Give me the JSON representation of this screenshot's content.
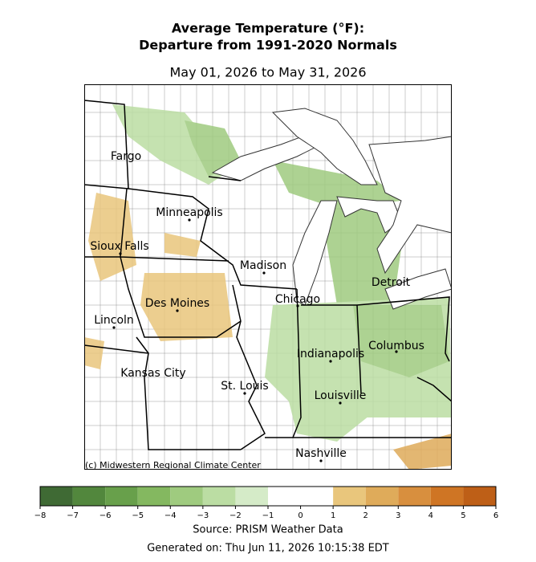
{
  "title": [
    "Average Temperature (°F):",
    "Departure from 1991-2020 Normals"
  ],
  "subtitle": "May 01, 2026 to May 31, 2026",
  "cities": [
    "Fargo",
    "Minneapolis",
    "Sioux Falls",
    "Madison",
    "Detroit",
    "Chicago",
    "Des Moines",
    "Lincoln",
    "Columbus",
    "Indianapolis",
    "Kansas City",
    "St. Louis",
    "Louisville",
    "Nashville"
  ],
  "credit": "(c) Midwestern Regional Climate Center",
  "colorbar": {
    "ticks": [
      {
        "value": -8,
        "label": "−8"
      },
      {
        "value": -7,
        "label": "−7"
      },
      {
        "value": -6,
        "label": "−6"
      },
      {
        "value": -5,
        "label": "−5"
      },
      {
        "value": -4,
        "label": "−4"
      },
      {
        "value": -3,
        "label": "−3"
      },
      {
        "value": -2,
        "label": "−2"
      },
      {
        "value": -1,
        "label": "−1"
      },
      0,
      1,
      2,
      3,
      4,
      5,
      6
    ],
    "colors": [
      "#3f6a34",
      "#52873d",
      "#68a04b",
      "#84b860",
      "#9fcb7f",
      "#bbdda3",
      "#d5ebc8",
      "#ffffff",
      "#ffffff",
      "#e9c67c",
      "#dfab5a",
      "#d88f3e",
      "#cf7524",
      "#be5f17"
    ]
  },
  "source": "Source: PRISM Weather Data",
  "generated": "Generated on: Thu Jun 11, 2026 10:15:38 EDT"
}
